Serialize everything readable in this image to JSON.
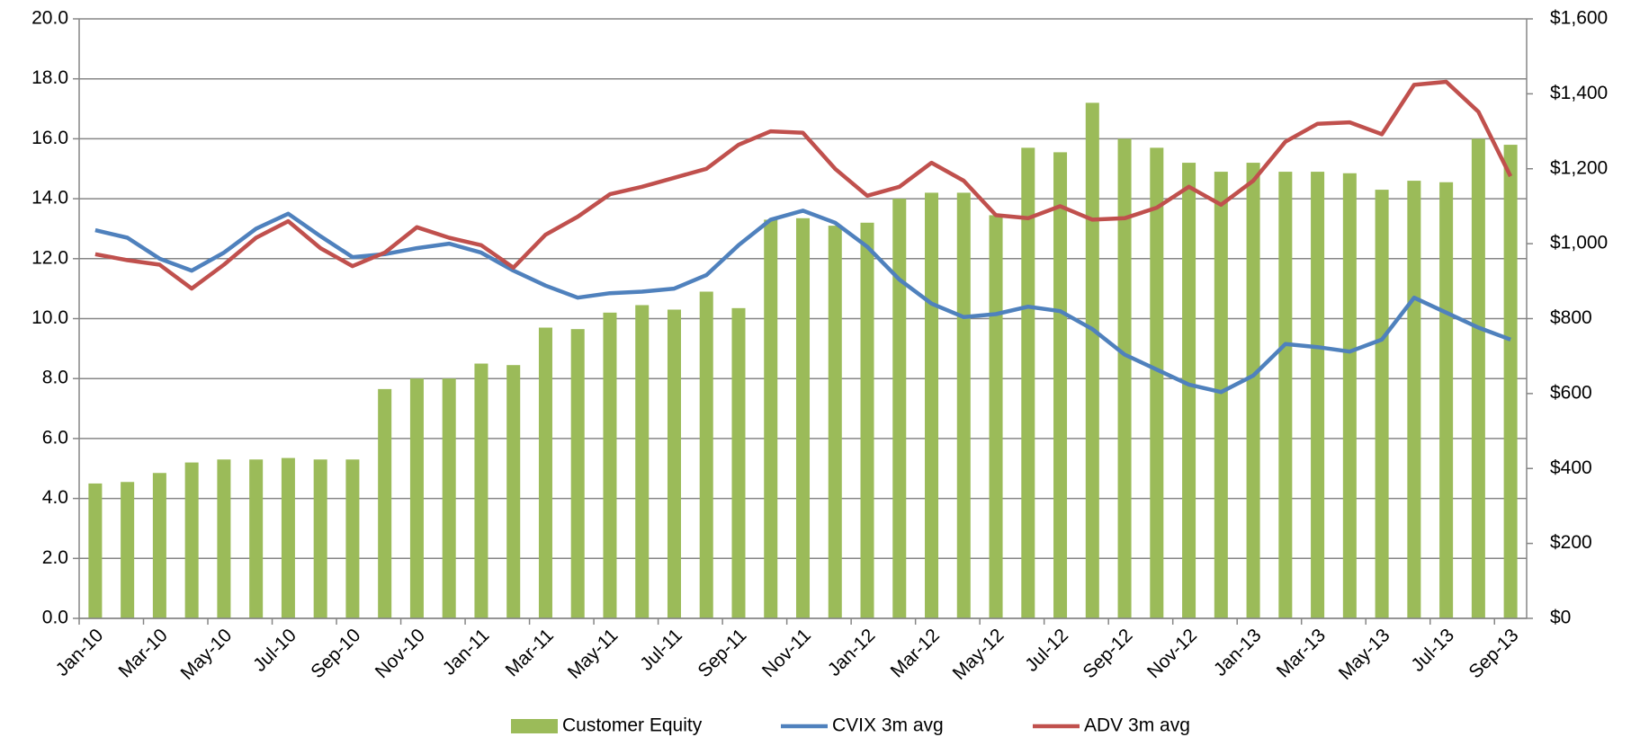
{
  "chart_data": {
    "type": "bar",
    "categories": [
      "Jan-10",
      null,
      "Mar-10",
      null,
      "May-10",
      null,
      "Jul-10",
      null,
      "Sep-10",
      null,
      "Nov-10",
      null,
      "Jan-11",
      null,
      "Mar-11",
      null,
      "May-11",
      null,
      "Jul-11",
      null,
      "Sep-11",
      null,
      "Nov-11",
      null,
      "Jan-12",
      null,
      "Mar-12",
      null,
      "May-12",
      null,
      "Jul-12",
      null,
      "Sep-12",
      null,
      "Nov-12",
      null,
      "Jan-13",
      null,
      "Mar-13",
      null,
      "May-13",
      null,
      "Jul-13",
      null,
      "Sep-13"
    ],
    "series": [
      {
        "name": "Customer Equity",
        "type": "bar",
        "color": "#9bbb59",
        "axis": "y",
        "values": [
          4.5,
          4.55,
          4.85,
          5.2,
          5.3,
          5.3,
          5.35,
          5.3,
          5.3,
          7.65,
          8.0,
          8.0,
          8.5,
          8.45,
          9.7,
          9.65,
          10.2,
          10.45,
          10.3,
          10.9,
          10.35,
          13.3,
          13.35,
          13.1,
          13.2,
          14.0,
          14.2,
          14.2,
          13.45,
          15.7,
          15.55,
          17.2,
          16.0,
          15.7,
          15.2,
          14.9,
          15.2,
          14.9,
          14.9,
          14.85,
          14.3,
          14.6,
          14.55,
          16.0,
          15.8
        ]
      },
      {
        "name": "CVIX 3m avg",
        "type": "line",
        "color": "#4f81bd",
        "axis": "y",
        "values": [
          12.95,
          12.7,
          12.0,
          11.6,
          12.2,
          13.0,
          13.5,
          12.75,
          12.05,
          12.15,
          12.35,
          12.5,
          12.2,
          11.6,
          11.1,
          10.7,
          10.85,
          10.9,
          11.0,
          11.45,
          12.45,
          13.3,
          13.6,
          13.2,
          12.4,
          11.3,
          10.5,
          10.05,
          10.15,
          10.4,
          10.25,
          9.65,
          8.8,
          8.3,
          7.8,
          7.55,
          8.1,
          9.15,
          9.05,
          8.9,
          9.3,
          10.7,
          10.2,
          9.7,
          9.3
        ]
      },
      {
        "name": "ADV 3m avg",
        "type": "line",
        "color": "#c0504d",
        "axis": "y2",
        "values": [
          972,
          956,
          944,
          880,
          944,
          1016,
          1060,
          988,
          940,
          976,
          1044,
          1016,
          996,
          936,
          1024,
          1072,
          1132,
          1152,
          1176,
          1200,
          1264,
          1300,
          1296,
          1200,
          1128,
          1152,
          1216,
          1168,
          1076,
          1068,
          1100,
          1064,
          1068,
          1096,
          1152,
          1104,
          1168,
          1272,
          1320,
          1324,
          1292,
          1424,
          1432,
          1352,
          1180
        ]
      }
    ],
    "ylim": [
      0,
      20
    ],
    "yticks": [
      {
        "value": 0,
        "label": "0.0"
      },
      {
        "value": 2,
        "label": "2.0"
      },
      {
        "value": 4,
        "label": "4.0"
      },
      {
        "value": 6,
        "label": "6.0"
      },
      {
        "value": 8,
        "label": "8.0"
      },
      {
        "value": 10,
        "label": "10.0"
      },
      {
        "value": 12,
        "label": "12.0"
      },
      {
        "value": 14,
        "label": "14.0"
      },
      {
        "value": 16,
        "label": "16.0"
      },
      {
        "value": 18,
        "label": "18.0"
      },
      {
        "value": 20,
        "label": "20.0"
      }
    ],
    "y2lim": [
      0,
      1600
    ],
    "y2ticks": [
      {
        "value": 0,
        "label": "$0"
      },
      {
        "value": 200,
        "label": "$200"
      },
      {
        "value": 400,
        "label": "$400"
      },
      {
        "value": 600,
        "label": "$600"
      },
      {
        "value": 800,
        "label": "$800"
      },
      {
        "value": 1000,
        "label": "$1,000"
      },
      {
        "value": 1200,
        "label": "$1,200"
      },
      {
        "value": 1400,
        "label": "$1,400"
      },
      {
        "value": 1600,
        "label": "$1,600"
      }
    ],
    "grid": true,
    "legend": "bottom"
  }
}
